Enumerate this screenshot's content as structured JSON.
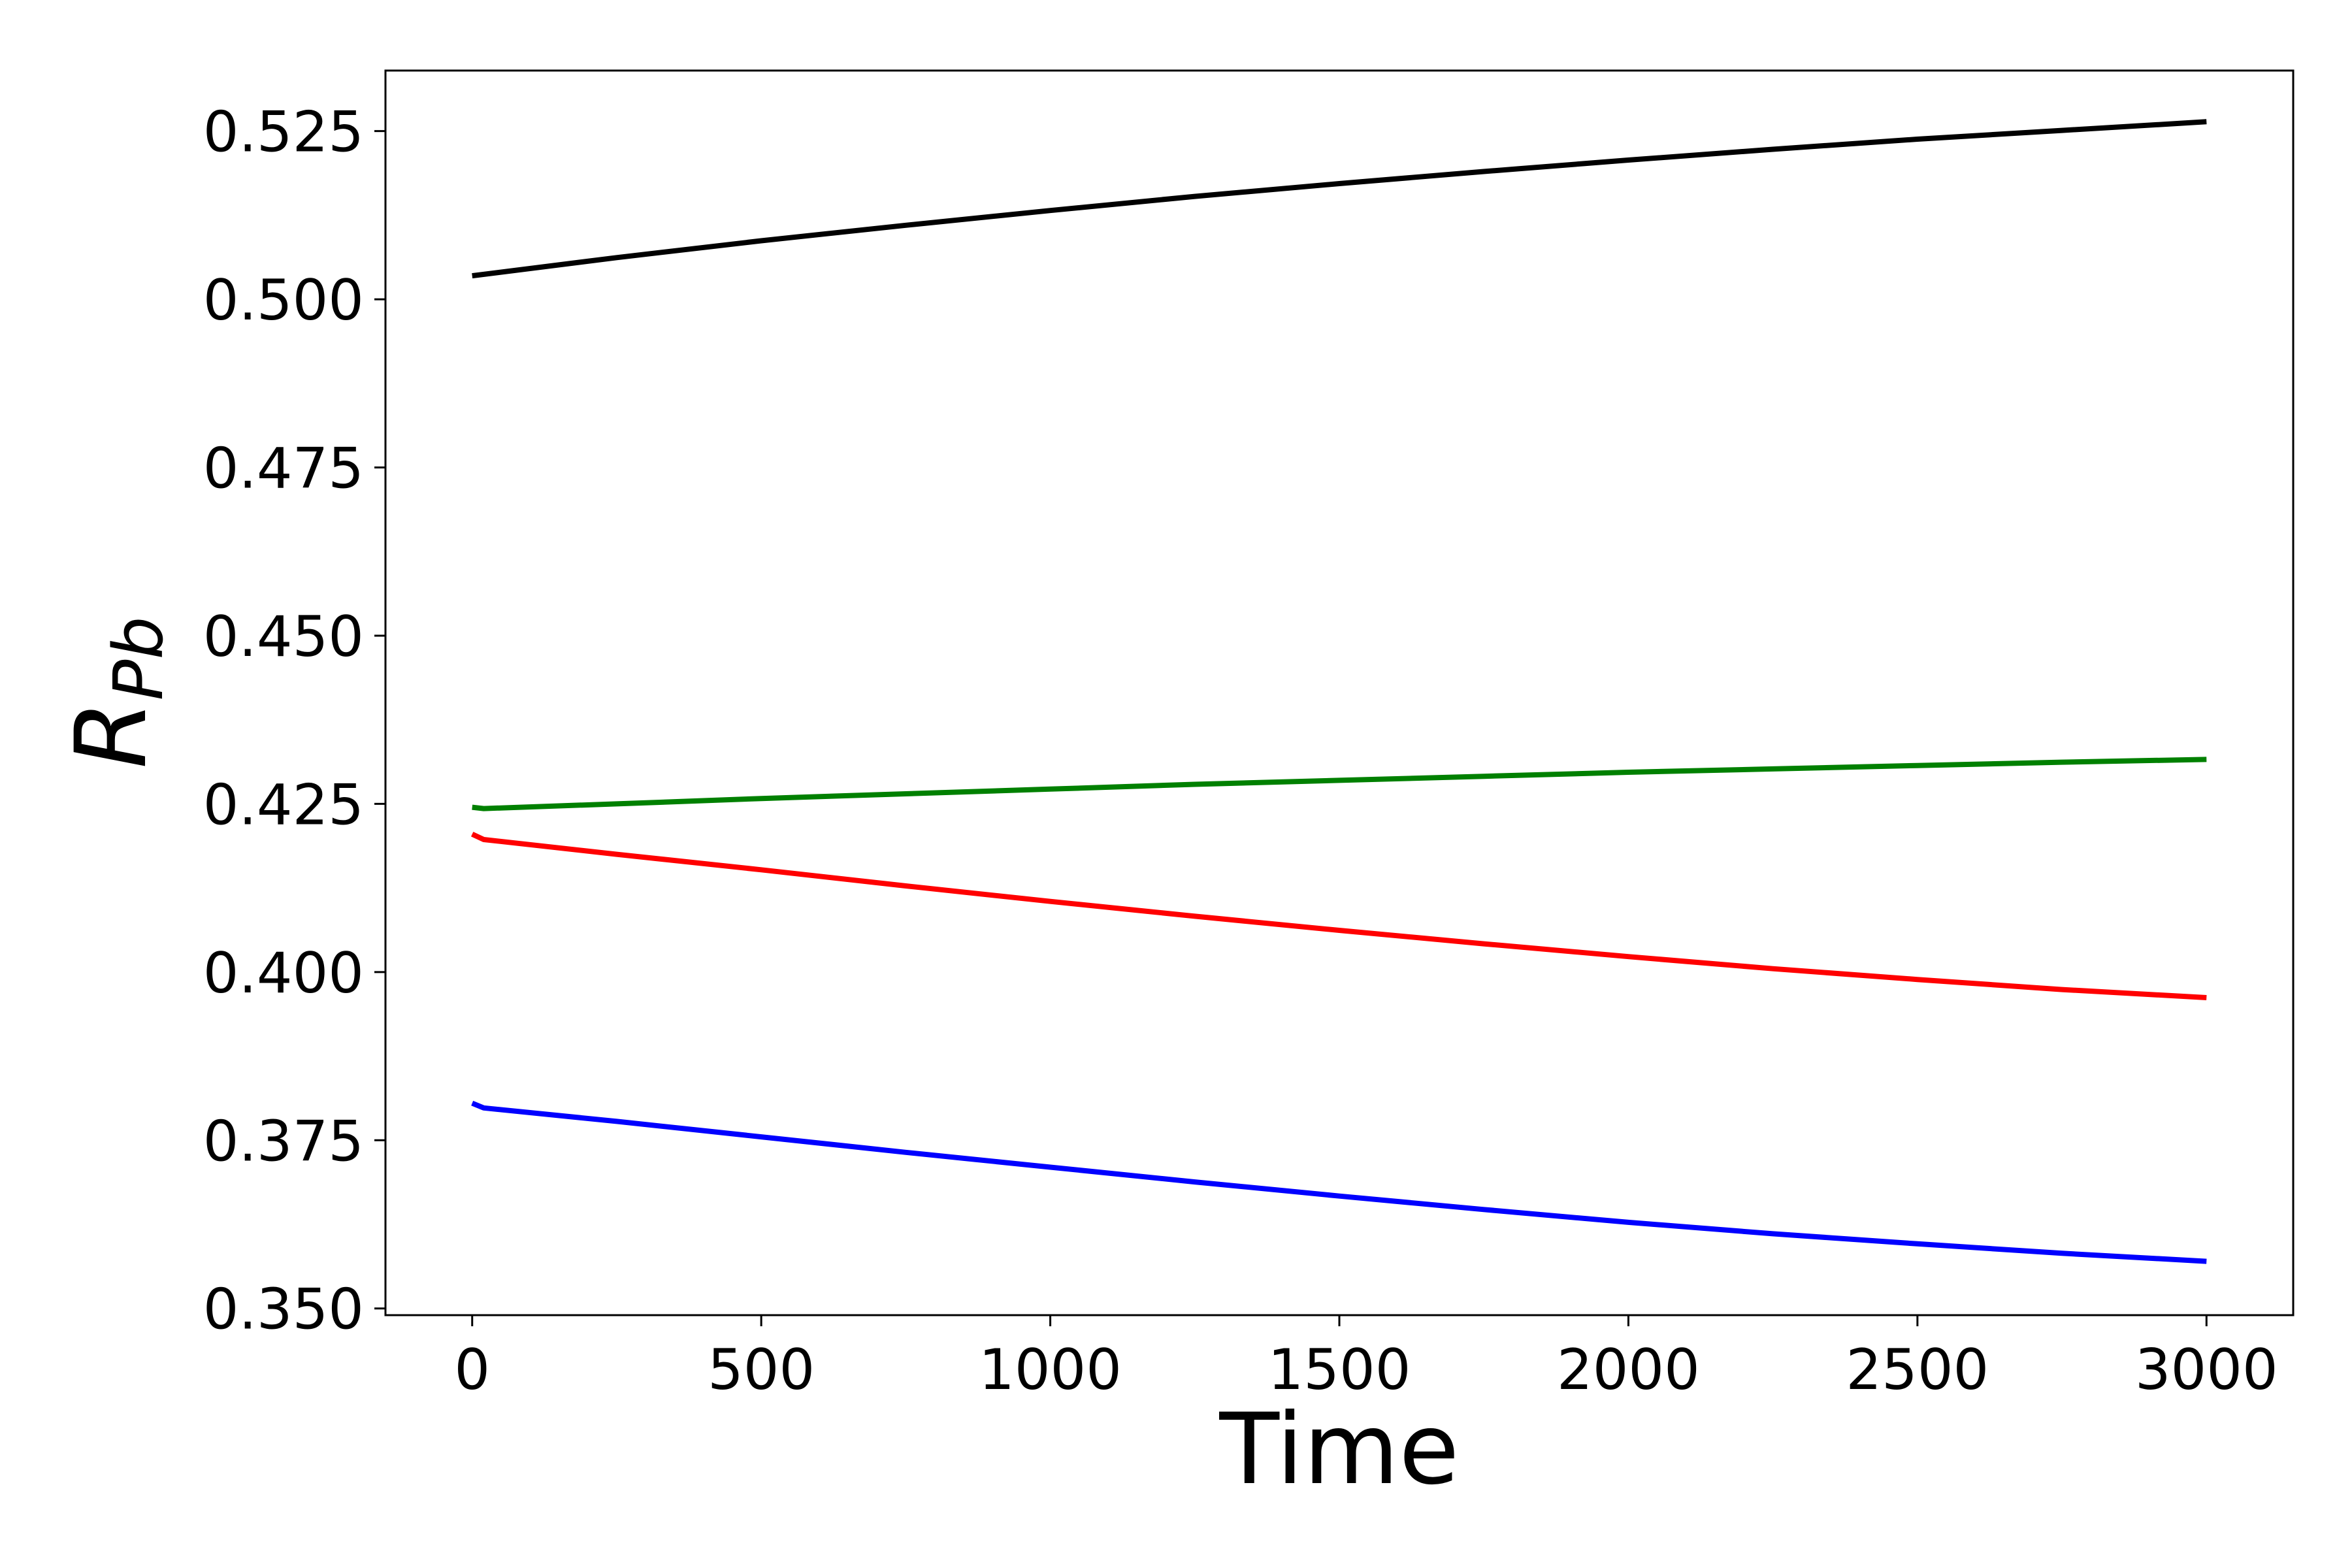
{
  "chart_data": {
    "type": "line",
    "title": "",
    "xlabel": "Time",
    "ylabel": {
      "main": "R",
      "subscript": "Pb"
    },
    "xlim": [
      -150,
      3150
    ],
    "ylim": [
      0.349,
      0.534
    ],
    "xticks": [
      0,
      500,
      1000,
      1500,
      2000,
      2500,
      3000
    ],
    "xtick_labels": [
      "0",
      "500",
      "1000",
      "1500",
      "2000",
      "2500",
      "3000"
    ],
    "yticks": [
      0.35,
      0.375,
      0.4,
      0.425,
      0.45,
      0.475,
      0.5,
      0.525
    ],
    "ytick_labels": [
      "0.350",
      "0.375",
      "0.400",
      "0.425",
      "0.450",
      "0.475",
      "0.500",
      "0.525"
    ],
    "grid": false,
    "legend": "none",
    "series": [
      {
        "color": "#000000",
        "x": [
          0,
          250,
          500,
          750,
          1000,
          1250,
          1500,
          1750,
          2000,
          2250,
          2500,
          2750,
          3000
        ],
        "y": [
          0.5035,
          0.5062,
          0.5087,
          0.511,
          0.5132,
          0.5153,
          0.5172,
          0.519,
          0.5207,
          0.5223,
          0.5238,
          0.5251,
          0.5264
        ]
      },
      {
        "color": "#008000",
        "x": [
          0,
          20,
          250,
          500,
          750,
          1000,
          1250,
          1500,
          1750,
          2000,
          2250,
          2500,
          2750,
          3000
        ],
        "y": [
          0.4245,
          0.4243,
          0.425,
          0.4258,
          0.4265,
          0.4272,
          0.4279,
          0.4285,
          0.4291,
          0.4297,
          0.4302,
          0.4307,
          0.4312,
          0.4316
        ]
      },
      {
        "color": "#ff0000",
        "x": [
          0,
          20,
          250,
          500,
          750,
          1000,
          1250,
          1500,
          1750,
          2000,
          2250,
          2500,
          2750,
          3000
        ],
        "y": [
          0.4205,
          0.4197,
          0.4175,
          0.4152,
          0.4128,
          0.4105,
          0.4083,
          0.4062,
          0.4042,
          0.4023,
          0.4005,
          0.3989,
          0.3974,
          0.3962
        ]
      },
      {
        "color": "#0000ff",
        "x": [
          0,
          20,
          250,
          500,
          750,
          1000,
          1250,
          1500,
          1750,
          2000,
          2250,
          2500,
          2750,
          3000
        ],
        "y": [
          0.3805,
          0.3798,
          0.3778,
          0.3755,
          0.3732,
          0.371,
          0.3688,
          0.3667,
          0.3647,
          0.3628,
          0.3611,
          0.3596,
          0.3582,
          0.357
        ]
      }
    ]
  }
}
